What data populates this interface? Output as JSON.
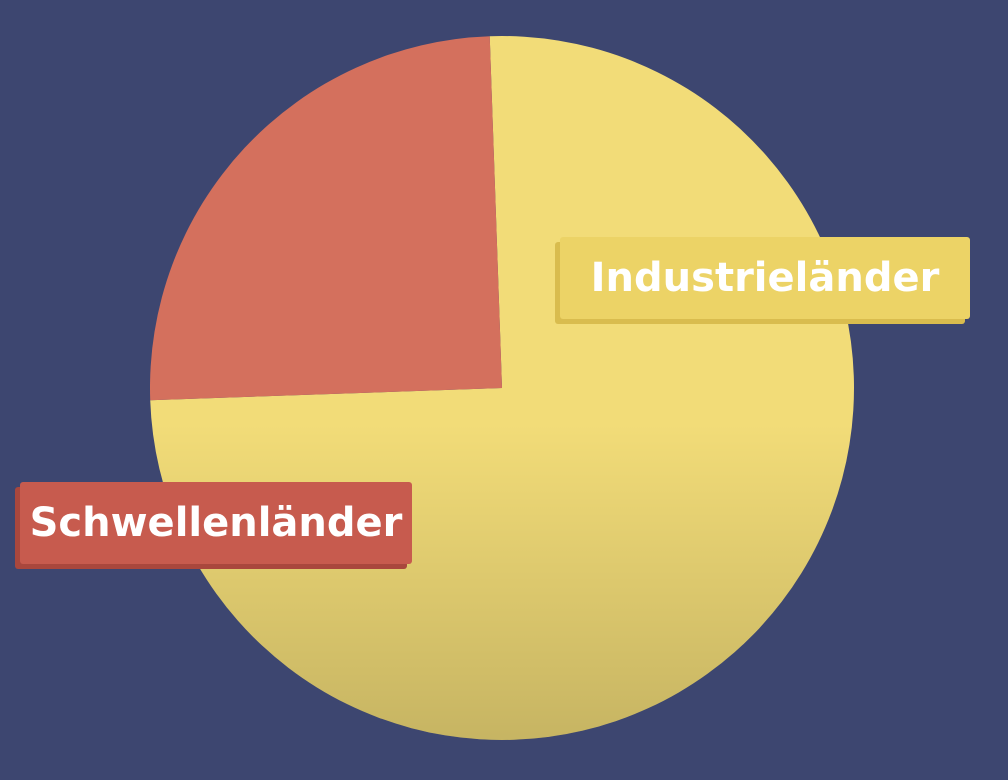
{
  "chart_data": {
    "type": "pie",
    "title": "",
    "slices": [
      {
        "label": "Industrieländer",
        "value": 75,
        "color": "#f2dc78"
      },
      {
        "label": "Schwellenländer",
        "value": 25,
        "color": "#d4705d"
      }
    ]
  },
  "colors": {
    "background": "#3d4670",
    "industry_label_bg": "#ecd366",
    "emerging_label_bg": "#c75b4e"
  }
}
